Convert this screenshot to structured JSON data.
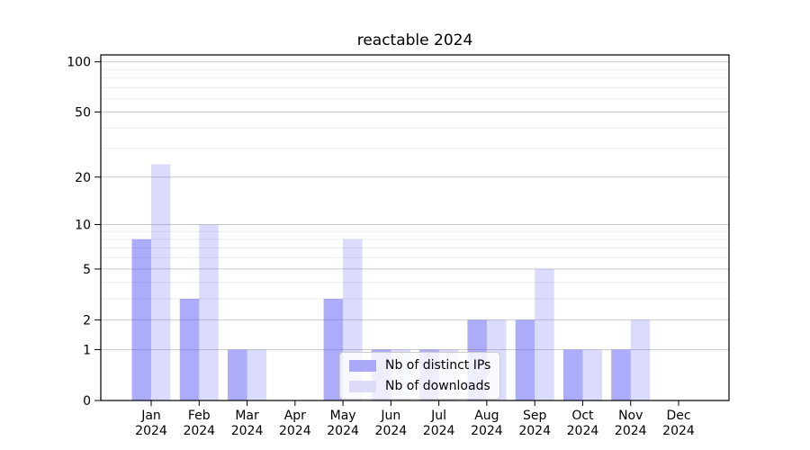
{
  "chart_data": {
    "type": "bar",
    "title": "reactable 2024",
    "categories": [
      {
        "month": "Jan",
        "year": "2024"
      },
      {
        "month": "Feb",
        "year": "2024"
      },
      {
        "month": "Mar",
        "year": "2024"
      },
      {
        "month": "Apr",
        "year": "2024"
      },
      {
        "month": "May",
        "year": "2024"
      },
      {
        "month": "Jun",
        "year": "2024"
      },
      {
        "month": "Jul",
        "year": "2024"
      },
      {
        "month": "Aug",
        "year": "2024"
      },
      {
        "month": "Sep",
        "year": "2024"
      },
      {
        "month": "Oct",
        "year": "2024"
      },
      {
        "month": "Nov",
        "year": "2024"
      },
      {
        "month": "Dec",
        "year": "2024"
      }
    ],
    "series": [
      {
        "name": "Nb of distinct IPs",
        "values": [
          8,
          3,
          1,
          0,
          3,
          1,
          1,
          2,
          2,
          1,
          1,
          0
        ],
        "color": "rgba(90,90,245,0.5)",
        "legend_color": "#a9a9f7"
      },
      {
        "name": "Nb of downloads",
        "values": [
          24,
          10,
          1,
          0,
          8,
          1,
          1,
          2,
          5,
          1,
          2,
          0
        ],
        "color": "rgba(90,90,245,0.22)",
        "legend_color": "#dcdcf8"
      }
    ],
    "scale": "log1p",
    "yticks": [
      0,
      1,
      2,
      5,
      10,
      20,
      50,
      100
    ],
    "minor_gridlines": [
      3,
      4,
      6,
      7,
      8,
      9,
      30,
      40,
      60,
      70,
      80,
      90
    ],
    "ylim": [
      0,
      110
    ],
    "xlabel": "",
    "ylabel": "",
    "grid": true,
    "legend_position": "lower center",
    "colors": {
      "grid_major": "#cccccc",
      "grid_minor": "#ebebeb",
      "axis": "#000000",
      "background": "#ffffff"
    }
  }
}
